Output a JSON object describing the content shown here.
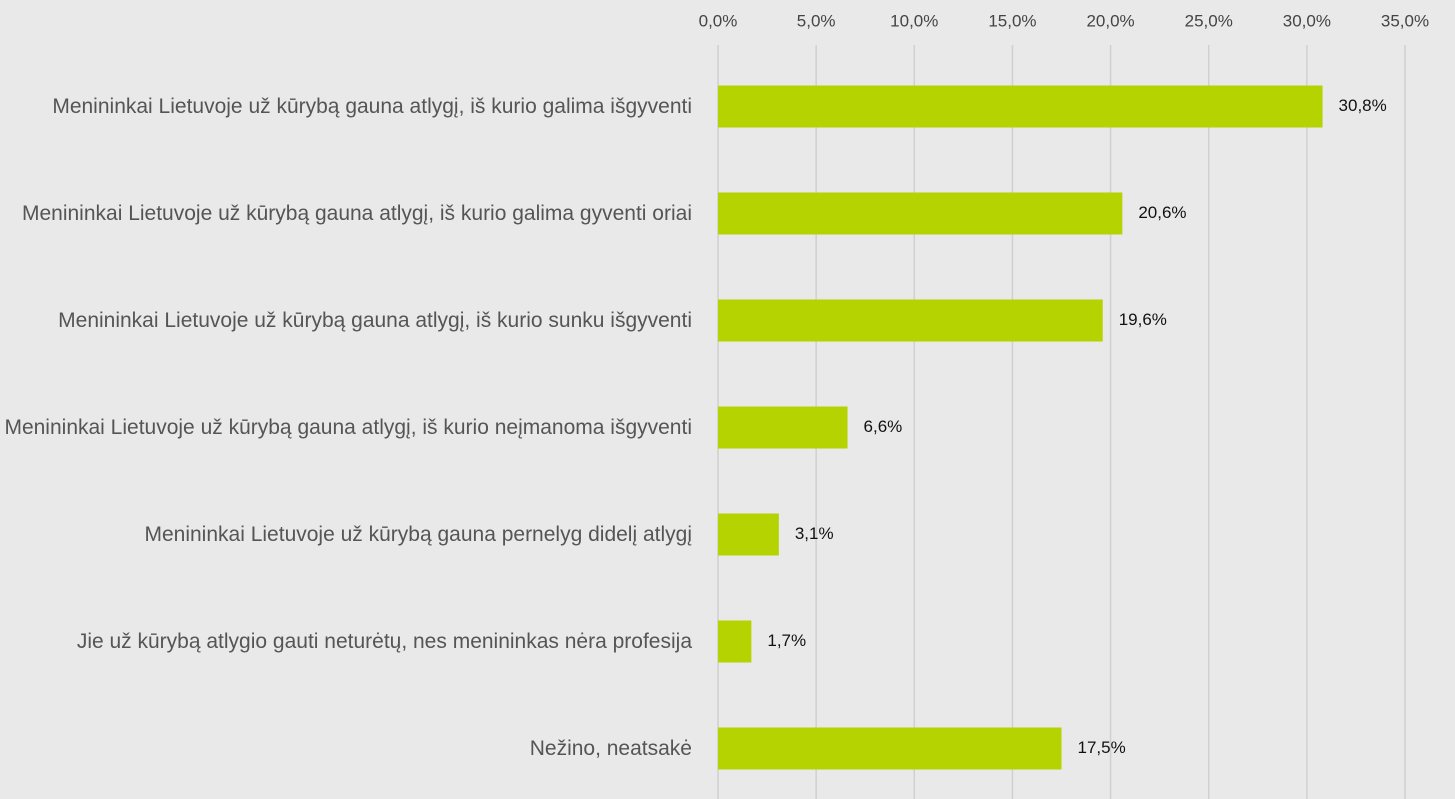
{
  "chart_data": {
    "type": "bar",
    "orientation": "horizontal",
    "categories": [
      "Menininkai Lietuvoje už kūrybą gauna atlygį, iš kurio galima išgyventi",
      "Menininkai Lietuvoje už kūrybą gauna atlygį, iš kurio galima gyventi oriai",
      "Menininkai Lietuvoje už kūrybą gauna atlygį, iš kurio sunku išgyventi",
      "Menininkai Lietuvoje už kūrybą gauna atlygį, iš kurio neįmanoma išgyventi",
      "Menininkai Lietuvoje už kūrybą gauna pernelyg didelį atlygį",
      "Jie už kūrybą atlygio gauti neturėtų, nes menininkas nėra profesija",
      "Nežino, neatsakė"
    ],
    "values": [
      30.8,
      20.6,
      19.6,
      6.6,
      3.1,
      1.7,
      17.5
    ],
    "value_labels": [
      "30,8%",
      "20,6%",
      "19,6%",
      "6,6%",
      "3,1%",
      "1,7%",
      "17,5%"
    ],
    "color": "#b5d300",
    "xlim": [
      0,
      35
    ],
    "xticks": [
      {
        "value": 0,
        "label": "0,0%"
      },
      {
        "value": 5,
        "label": "5,0%"
      },
      {
        "value": 10,
        "label": "10,0%"
      },
      {
        "value": 15,
        "label": "15,0%"
      },
      {
        "value": 20,
        "label": "20,0%"
      },
      {
        "value": 25,
        "label": "25,0%"
      },
      {
        "value": 30,
        "label": "30,0%"
      },
      {
        "value": 35,
        "label": "35,0%"
      }
    ],
    "grid": true
  }
}
